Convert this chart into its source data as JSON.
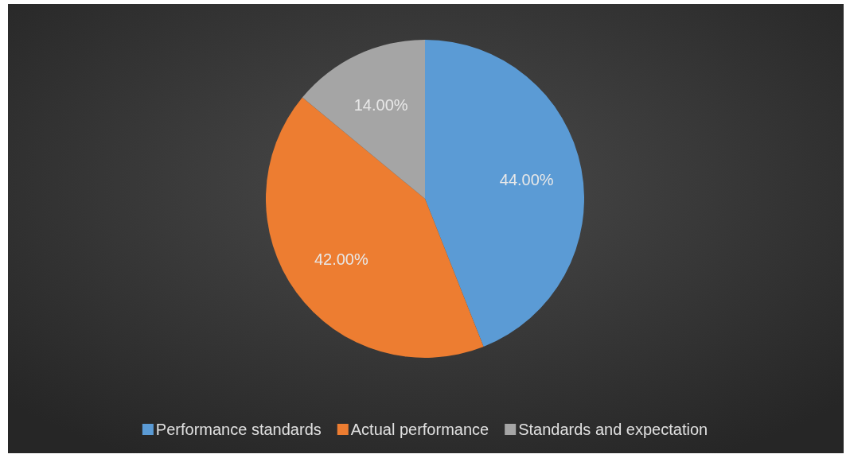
{
  "chart_data": {
    "type": "pie",
    "categories": [
      "Performance standards",
      "Actual performance",
      "Standards and expectation"
    ],
    "values": [
      44,
      42,
      14
    ],
    "value_labels": [
      "44.00%",
      "42.00%",
      "14.00%"
    ],
    "colors": [
      "#5b9bd5",
      "#ed7d31",
      "#a5a5a5"
    ],
    "legend": "bottom"
  }
}
